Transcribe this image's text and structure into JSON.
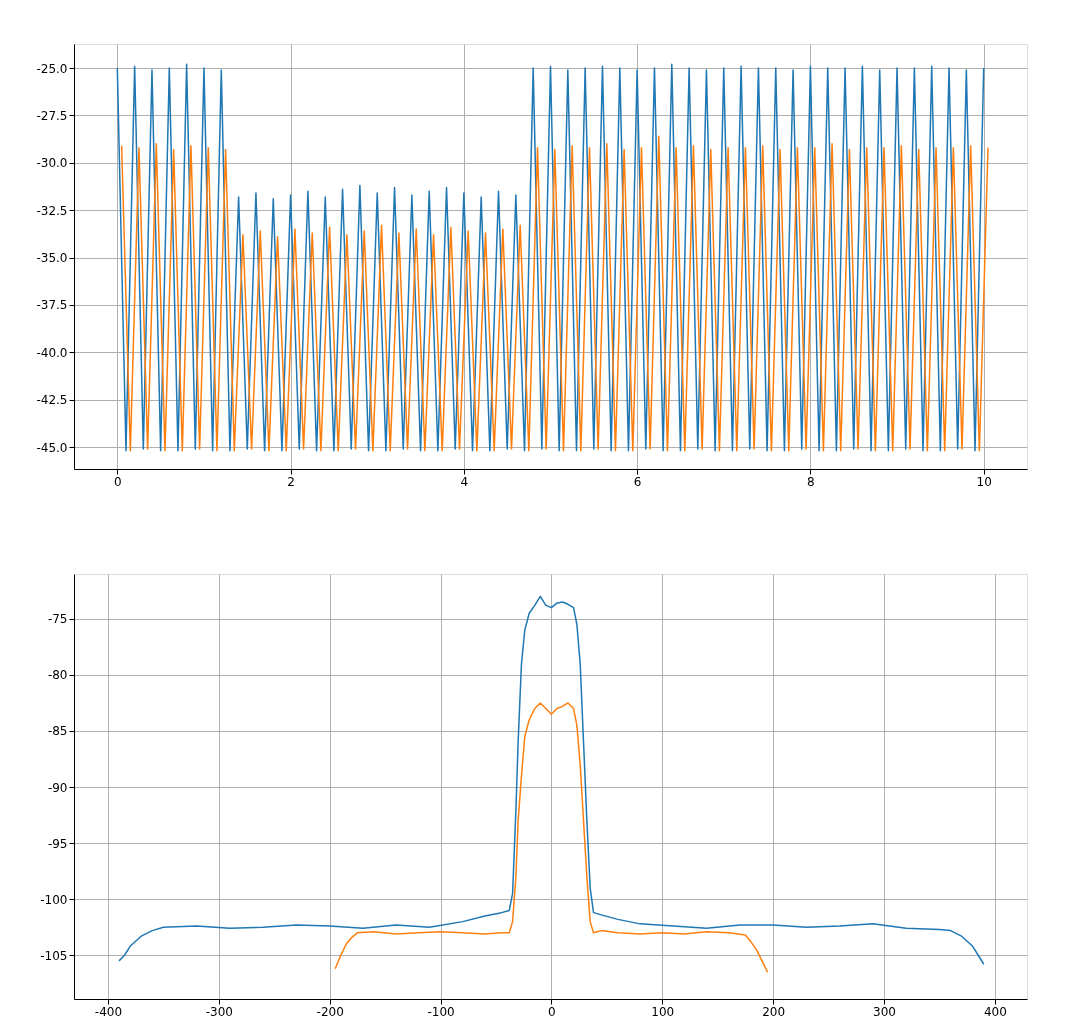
{
  "chart_data": [
    {
      "type": "line",
      "grid": true,
      "xlim": [
        -0.5,
        10.5
      ],
      "xticks": [
        0,
        2,
        4,
        6,
        8,
        10
      ],
      "ylim": [
        -46.16,
        -23.73
      ],
      "yticks": [
        {
          "value": -45,
          "label": "-45.0"
        },
        {
          "value": -42.5,
          "label": "-42.5"
        },
        {
          "value": -40,
          "label": "-40.0"
        },
        {
          "value": -37.5,
          "label": "-37.5"
        },
        {
          "value": -35,
          "label": "-35.0"
        },
        {
          "value": -32.5,
          "label": "-32.5"
        },
        {
          "value": -30,
          "label": "-30.0"
        },
        {
          "value": -27.5,
          "label": "-27.5"
        },
        {
          "value": -25,
          "label": "-25.0"
        }
      ],
      "x": [
        0,
        0.1,
        0.2,
        0.3,
        0.4,
        0.5,
        0.6,
        0.7,
        0.8,
        0.9,
        1.0,
        1.1,
        1.2,
        1.3,
        1.4,
        1.5,
        1.6,
        1.7,
        1.8,
        1.9,
        2.0,
        2.1,
        2.2,
        2.3,
        2.4,
        2.5,
        2.6,
        2.7,
        2.8,
        2.9,
        3.0,
        3.1,
        3.2,
        3.3,
        3.4,
        3.5,
        3.6,
        3.7,
        3.8,
        3.9,
        4.0,
        4.1,
        4.2,
        4.3,
        4.4,
        4.5,
        4.6,
        4.7,
        4.8,
        4.9,
        5.0,
        5.1,
        5.2,
        5.3,
        5.4,
        5.5,
        5.6,
        5.7,
        5.8,
        5.9,
        6.0,
        6.1,
        6.2,
        6.3,
        6.4,
        6.5,
        6.6,
        6.7,
        6.8,
        6.9,
        7.0,
        7.1,
        7.2,
        7.3,
        7.4,
        7.5,
        7.6,
        7.7,
        7.8,
        7.9,
        8.0,
        8.1,
        8.2,
        8.3,
        8.4,
        8.5,
        8.6,
        8.7,
        8.8,
        8.9,
        9.0,
        9.1,
        9.2,
        9.3,
        9.4,
        9.5,
        9.6,
        9.7,
        9.8,
        9.9,
        10.0
      ],
      "series": [
        {
          "color": "#1f77b4",
          "values": [
            -25.0,
            -45.2,
            -24.9,
            -45.1,
            -25.1,
            -45.2,
            -25.0,
            -45.2,
            -24.8,
            -45.1,
            -25.0,
            -45.2,
            -25.1,
            -45.2,
            -31.8,
            -45.1,
            -31.6,
            -45.2,
            -31.9,
            -45.2,
            -31.7,
            -45.1,
            -31.5,
            -45.2,
            -31.8,
            -45.2,
            -31.4,
            -45.1,
            -31.2,
            -45.2,
            -31.6,
            -45.2,
            -31.3,
            -45.1,
            -31.7,
            -45.2,
            -31.5,
            -45.2,
            -31.3,
            -45.1,
            -31.6,
            -45.2,
            -31.8,
            -45.2,
            -31.5,
            -45.1,
            -31.7,
            -45.2,
            -25.0,
            -45.1,
            -24.9,
            -45.2,
            -25.1,
            -45.2,
            -25.0,
            -45.1,
            -24.9,
            -45.2,
            -25.0,
            -45.2,
            -25.1,
            -45.1,
            -25.0,
            -45.2,
            -24.8,
            -45.2,
            -25.0,
            -45.1,
            -25.1,
            -45.2,
            -25.0,
            -45.2,
            -24.9,
            -45.1,
            -25.0,
            -45.2,
            -25.0,
            -45.2,
            -25.1,
            -45.1,
            -24.9,
            -45.2,
            -25.0,
            -45.2,
            -25.0,
            -45.1,
            -24.9,
            -45.2,
            -25.1,
            -45.2,
            -25.0,
            -45.1,
            -25.0,
            -45.2,
            -24.9,
            -45.2,
            -25.0,
            -45.1,
            -25.1,
            -45.2,
            -25.0
          ]
        },
        {
          "color": "#ff7f0e",
          "x": [
            0.05,
            0.15,
            0.25,
            0.35,
            0.45,
            0.55,
            0.65,
            0.75,
            0.85,
            0.95,
            1.05,
            1.15,
            1.25,
            1.35,
            1.45,
            1.55,
            1.65,
            1.75,
            1.85,
            1.95,
            2.05,
            2.15,
            2.25,
            2.35,
            2.45,
            2.55,
            2.65,
            2.75,
            2.85,
            2.95,
            3.05,
            3.15,
            3.25,
            3.35,
            3.45,
            3.55,
            3.65,
            3.75,
            3.85,
            3.95,
            4.05,
            4.15,
            4.25,
            4.35,
            4.45,
            4.55,
            4.65,
            4.75,
            4.85,
            4.95,
            5.05,
            5.15,
            5.25,
            5.35,
            5.45,
            5.55,
            5.65,
            5.75,
            5.85,
            5.95,
            6.05,
            6.15,
            6.25,
            6.35,
            6.45,
            6.55,
            6.65,
            6.75,
            6.85,
            6.95,
            7.05,
            7.15,
            7.25,
            7.35,
            7.45,
            7.55,
            7.65,
            7.75,
            7.85,
            7.95,
            8.05,
            8.15,
            8.25,
            8.35,
            8.45,
            8.55,
            8.65,
            8.75,
            8.85,
            8.95,
            9.05,
            9.15,
            9.25,
            9.35,
            9.45,
            9.55,
            9.65,
            9.75,
            9.85,
            9.95,
            10.05
          ],
          "values": [
            -29.1,
            -45.2,
            -29.2,
            -45.1,
            -29.0,
            -45.2,
            -29.3,
            -45.2,
            -29.1,
            -45.1,
            -29.2,
            -45.2,
            -29.3,
            -45.2,
            -33.8,
            -45.1,
            -33.6,
            -45.2,
            -33.9,
            -45.2,
            -33.5,
            -45.1,
            -33.7,
            -45.2,
            -33.4,
            -45.2,
            -33.8,
            -45.1,
            -33.6,
            -45.2,
            -33.3,
            -45.2,
            -33.7,
            -45.1,
            -33.5,
            -45.2,
            -33.8,
            -45.2,
            -33.4,
            -45.1,
            -33.6,
            -45.2,
            -33.7,
            -45.2,
            -33.5,
            -45.1,
            -33.3,
            -45.2,
            -29.2,
            -45.1,
            -29.3,
            -45.2,
            -29.1,
            -45.2,
            -29.2,
            -45.1,
            -29.0,
            -45.2,
            -29.3,
            -45.2,
            -29.2,
            -45.1,
            -28.6,
            -45.2,
            -29.2,
            -45.2,
            -29.1,
            -45.1,
            -29.3,
            -45.2,
            -29.2,
            -45.2,
            -29.2,
            -45.1,
            -29.1,
            -45.2,
            -29.3,
            -45.2,
            -29.2,
            -45.1,
            -29.2,
            -45.2,
            -29.0,
            -45.2,
            -29.3,
            -45.1,
            -29.2,
            -45.2,
            -29.2,
            -45.2,
            -29.1,
            -45.1,
            -29.3,
            -45.2,
            -29.2,
            -45.2,
            -29.2,
            -45.1,
            -29.1,
            -45.2,
            -29.2
          ]
        }
      ]
    },
    {
      "type": "line",
      "grid": true,
      "xlim": [
        -430.6,
        429
      ],
      "xticks": [
        -400,
        -300,
        -200,
        -100,
        0,
        100,
        200,
        300,
        400
      ],
      "ylim": [
        -108.9,
        -71
      ],
      "yticks": [
        -105,
        -100,
        -95,
        -90,
        -85,
        -80,
        -75
      ],
      "series": [
        {
          "color": "#1f77b4",
          "x": [
            -390,
            -385,
            -380,
            -370,
            -360,
            -350,
            -320,
            -290,
            -260,
            -230,
            -200,
            -170,
            -140,
            -110,
            -80,
            -60,
            -45,
            -38,
            -35,
            -32,
            -30,
            -27,
            -24,
            -20,
            -15,
            -10,
            -5,
            0,
            5,
            10,
            15,
            20,
            23,
            26,
            29,
            32,
            35,
            38,
            45,
            60,
            80,
            110,
            140,
            170,
            200,
            230,
            260,
            290,
            320,
            350,
            360,
            370,
            380,
            385,
            390
          ],
          "values": [
            -105.5,
            -105.0,
            -104.2,
            -103.3,
            -102.8,
            -102.5,
            -102.4,
            -102.6,
            -102.5,
            -102.3,
            -102.4,
            -102.6,
            -102.3,
            -102.5,
            -102.0,
            -101.5,
            -101.2,
            -101.0,
            -99.5,
            -92.0,
            -86.0,
            -79.0,
            -76.0,
            -74.5,
            -73.8,
            -73.0,
            -73.8,
            -74.0,
            -73.6,
            -73.5,
            -73.7,
            -74.0,
            -75.5,
            -79.0,
            -86.0,
            -93.0,
            -99.0,
            -101.2,
            -101.4,
            -101.8,
            -102.2,
            -102.4,
            -102.6,
            -102.3,
            -102.3,
            -102.5,
            -102.4,
            -102.2,
            -102.6,
            -102.7,
            -102.8,
            -103.3,
            -104.2,
            -105.0,
            -105.8
          ]
        },
        {
          "color": "#ff7f0e",
          "x": [
            -195,
            -190,
            -185,
            -180,
            -175,
            -160,
            -140,
            -120,
            -100,
            -80,
            -60,
            -45,
            -38,
            -35,
            -32,
            -30,
            -27,
            -24,
            -20,
            -15,
            -10,
            -5,
            0,
            5,
            10,
            15,
            20,
            23,
            26,
            29,
            32,
            35,
            38,
            45,
            60,
            80,
            100,
            120,
            140,
            160,
            175,
            180,
            185,
            190,
            195
          ],
          "values": [
            -106.2,
            -105.0,
            -104.0,
            -103.4,
            -103.0,
            -102.9,
            -103.1,
            -103.0,
            -102.9,
            -103.0,
            -103.1,
            -103.0,
            -103.0,
            -102.0,
            -98.0,
            -93.0,
            -89.0,
            -85.5,
            -84.0,
            -83.0,
            -82.5,
            -83.0,
            -83.5,
            -83.0,
            -82.8,
            -82.5,
            -83.0,
            -84.5,
            -88.0,
            -93.0,
            -98.0,
            -102.0,
            -103.0,
            -102.8,
            -103.0,
            -103.1,
            -103.0,
            -103.1,
            -102.9,
            -103.0,
            -103.2,
            -103.8,
            -104.5,
            -105.5,
            -106.5
          ]
        }
      ]
    }
  ]
}
